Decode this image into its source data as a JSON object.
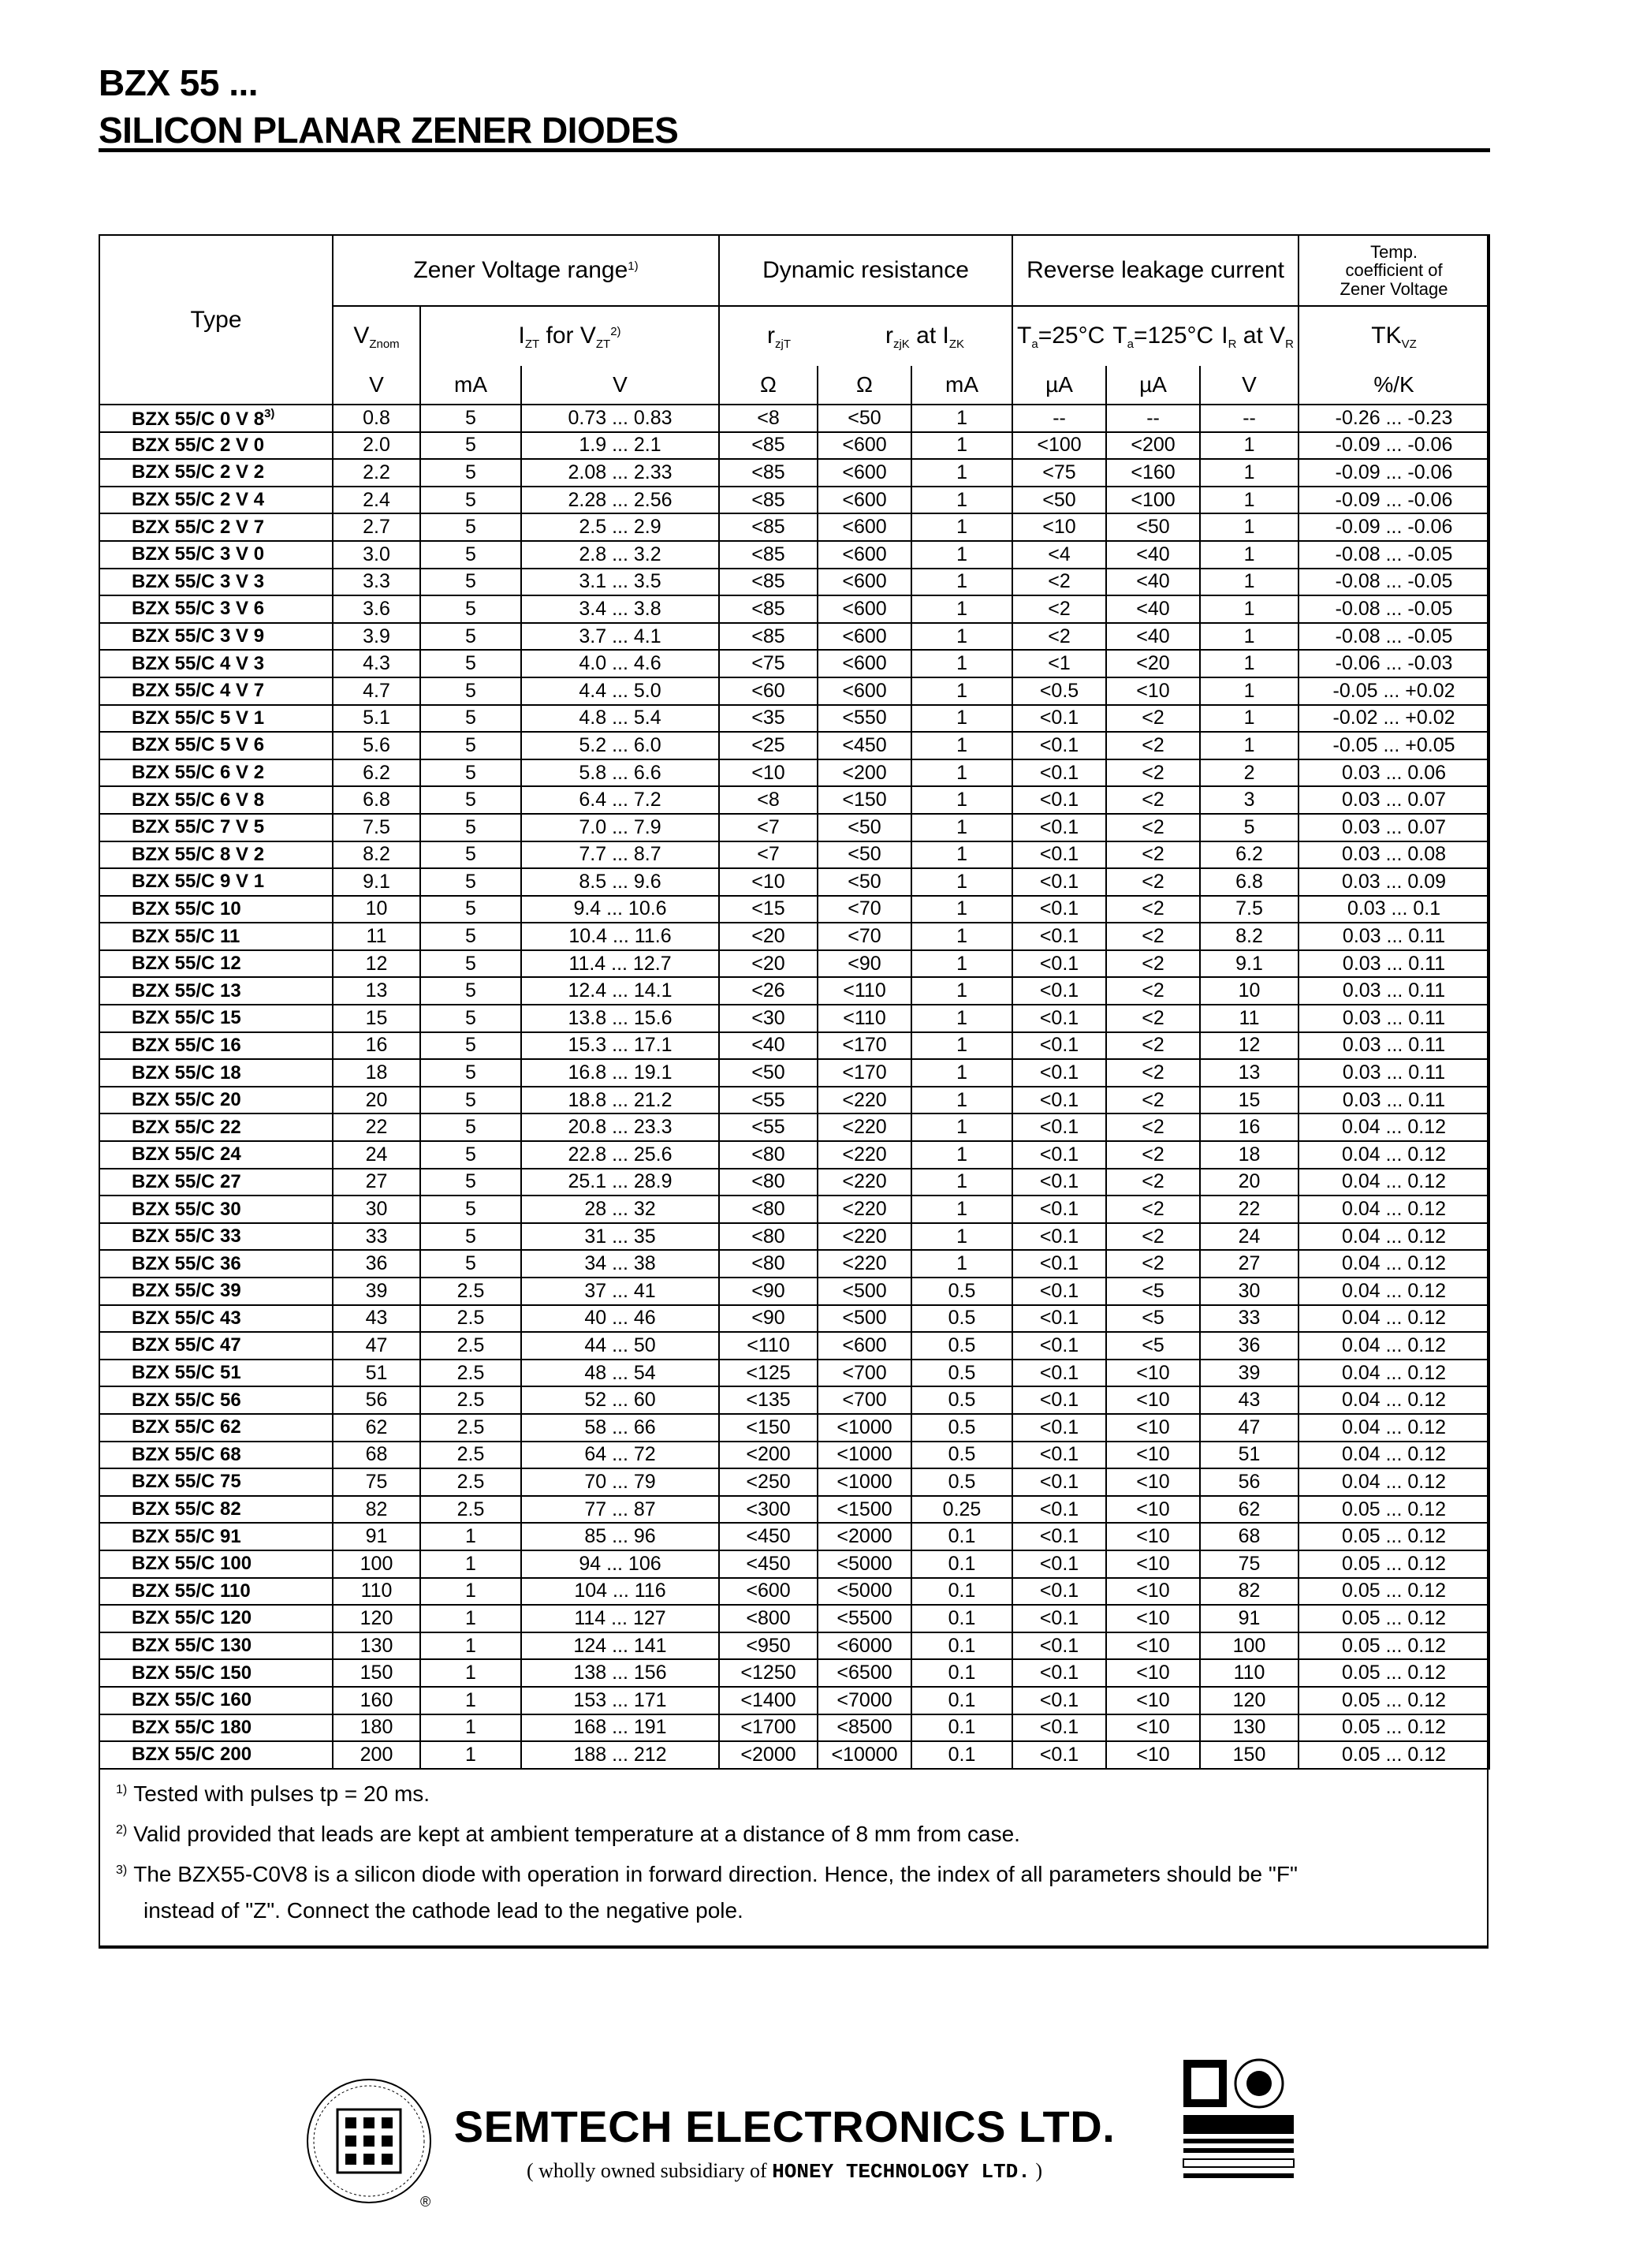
{
  "header": {
    "line1": "BZX 55 ...",
    "line2": "SILICON PLANAR ZENER DIODES"
  },
  "table": {
    "groups": {
      "type": "Type",
      "zener": "Zener Voltage range",
      "zener_note": "1)",
      "dynamic": "Dynamic resistance",
      "reverse": "Reverse leakage current",
      "temp": [
        "Temp.",
        "coefficient of",
        "Zener Voltage"
      ]
    },
    "params": {
      "vznom": {
        "main": "V",
        "sub": "Znom"
      },
      "izt": {
        "main": "I",
        "sub": "ZT",
        "mid": " for V",
        "sub2": "ZT",
        "note": "2)"
      },
      "rzjt": {
        "main": "r",
        "sub": "zjT"
      },
      "rzjk": {
        "main": "r",
        "sub": "zjK",
        "mid": " at I",
        "sub2": "ZK"
      },
      "ta25": {
        "main": "T",
        "sub": "a",
        "rest": "=25°C"
      },
      "ta125": {
        "main": "T",
        "sub": "a",
        "rest": "=125°C"
      },
      "irvr": {
        "main": "I",
        "sub": "R",
        "mid": " at V",
        "sub2": "R"
      },
      "tk": {
        "main": "TK",
        "sub": "VZ"
      }
    },
    "units": [
      "V",
      "mA",
      "V",
      "Ω",
      "Ω",
      "mA",
      "µA",
      "µA",
      "V",
      "%/K"
    ],
    "rows": [
      [
        "BZX 55/C 0 V 8",
        "0.8",
        "5",
        "0.73 ... 0.83",
        "<8",
        "<50",
        "1",
        "--",
        "--",
        "--",
        "-0.26 ... -0.23"
      ],
      [
        "BZX 55/C 2 V 0",
        "2.0",
        "5",
        "1.9 ... 2.1",
        "<85",
        "<600",
        "1",
        "<100",
        "<200",
        "1",
        "-0.09 ... -0.06"
      ],
      [
        "BZX 55/C 2 V 2",
        "2.2",
        "5",
        "2.08 ... 2.33",
        "<85",
        "<600",
        "1",
        "<75",
        "<160",
        "1",
        "-0.09 ... -0.06"
      ],
      [
        "BZX 55/C 2 V 4",
        "2.4",
        "5",
        "2.28 ... 2.56",
        "<85",
        "<600",
        "1",
        "<50",
        "<100",
        "1",
        "-0.09 ... -0.06"
      ],
      [
        "BZX 55/C 2 V 7",
        "2.7",
        "5",
        "2.5 ... 2.9",
        "<85",
        "<600",
        "1",
        "<10",
        "<50",
        "1",
        "-0.09 ... -0.06"
      ],
      [
        "BZX 55/C 3 V 0",
        "3.0",
        "5",
        "2.8 ... 3.2",
        "<85",
        "<600",
        "1",
        "<4",
        "<40",
        "1",
        "-0.08 ... -0.05"
      ],
      [
        "BZX 55/C 3 V 3",
        "3.3",
        "5",
        "3.1 ... 3.5",
        "<85",
        "<600",
        "1",
        "<2",
        "<40",
        "1",
        "-0.08 ... -0.05"
      ],
      [
        "BZX 55/C 3 V 6",
        "3.6",
        "5",
        "3.4 ... 3.8",
        "<85",
        "<600",
        "1",
        "<2",
        "<40",
        "1",
        "-0.08 ... -0.05"
      ],
      [
        "BZX 55/C 3 V 9",
        "3.9",
        "5",
        "3.7 ... 4.1",
        "<85",
        "<600",
        "1",
        "<2",
        "<40",
        "1",
        "-0.08 ... -0.05"
      ],
      [
        "BZX 55/C 4 V 3",
        "4.3",
        "5",
        "4.0 ... 4.6",
        "<75",
        "<600",
        "1",
        "<1",
        "<20",
        "1",
        "-0.06 ... -0.03"
      ],
      [
        "BZX 55/C 4 V 7",
        "4.7",
        "5",
        "4.4 ... 5.0",
        "<60",
        "<600",
        "1",
        "<0.5",
        "<10",
        "1",
        "-0.05 ... +0.02"
      ],
      [
        "BZX 55/C 5 V 1",
        "5.1",
        "5",
        "4.8 ... 5.4",
        "<35",
        "<550",
        "1",
        "<0.1",
        "<2",
        "1",
        "-0.02 ... +0.02"
      ],
      [
        "BZX 55/C 5 V 6",
        "5.6",
        "5",
        "5.2 ... 6.0",
        "<25",
        "<450",
        "1",
        "<0.1",
        "<2",
        "1",
        "-0.05 ... +0.05"
      ],
      [
        "BZX 55/C 6 V 2",
        "6.2",
        "5",
        "5.8 ... 6.6",
        "<10",
        "<200",
        "1",
        "<0.1",
        "<2",
        "2",
        "0.03 ... 0.06"
      ],
      [
        "BZX 55/C 6 V 8",
        "6.8",
        "5",
        "6.4 ... 7.2",
        "<8",
        "<150",
        "1",
        "<0.1",
        "<2",
        "3",
        "0.03 ... 0.07"
      ],
      [
        "BZX 55/C 7 V 5",
        "7.5",
        "5",
        "7.0 ... 7.9",
        "<7",
        "<50",
        "1",
        "<0.1",
        "<2",
        "5",
        "0.03 ... 0.07"
      ],
      [
        "BZX 55/C 8 V 2",
        "8.2",
        "5",
        "7.7 ... 8.7",
        "<7",
        "<50",
        "1",
        "<0.1",
        "<2",
        "6.2",
        "0.03 ... 0.08"
      ],
      [
        "BZX 55/C 9 V 1",
        "9.1",
        "5",
        "8.5 ... 9.6",
        "<10",
        "<50",
        "1",
        "<0.1",
        "<2",
        "6.8",
        "0.03 ... 0.09"
      ],
      [
        "BZX 55/C 10",
        "10",
        "5",
        "9.4 ... 10.6",
        "<15",
        "<70",
        "1",
        "<0.1",
        "<2",
        "7.5",
        "0.03 ... 0.1"
      ],
      [
        "BZX 55/C 11",
        "11",
        "5",
        "10.4 ... 11.6",
        "<20",
        "<70",
        "1",
        "<0.1",
        "<2",
        "8.2",
        "0.03 ... 0.11"
      ],
      [
        "BZX 55/C 12",
        "12",
        "5",
        "11.4 ... 12.7",
        "<20",
        "<90",
        "1",
        "<0.1",
        "<2",
        "9.1",
        "0.03 ... 0.11"
      ],
      [
        "BZX 55/C 13",
        "13",
        "5",
        "12.4 ... 14.1",
        "<26",
        "<110",
        "1",
        "<0.1",
        "<2",
        "10",
        "0.03 ... 0.11"
      ],
      [
        "BZX 55/C 15",
        "15",
        "5",
        "13.8 ... 15.6",
        "<30",
        "<110",
        "1",
        "<0.1",
        "<2",
        "11",
        "0.03 ... 0.11"
      ],
      [
        "BZX 55/C 16",
        "16",
        "5",
        "15.3 ... 17.1",
        "<40",
        "<170",
        "1",
        "<0.1",
        "<2",
        "12",
        "0.03 ... 0.11"
      ],
      [
        "BZX 55/C 18",
        "18",
        "5",
        "16.8 ... 19.1",
        "<50",
        "<170",
        "1",
        "<0.1",
        "<2",
        "13",
        "0.03 ... 0.11"
      ],
      [
        "BZX 55/C 20",
        "20",
        "5",
        "18.8 ... 21.2",
        "<55",
        "<220",
        "1",
        "<0.1",
        "<2",
        "15",
        "0.03 ... 0.11"
      ],
      [
        "BZX 55/C 22",
        "22",
        "5",
        "20.8 ... 23.3",
        "<55",
        "<220",
        "1",
        "<0.1",
        "<2",
        "16",
        "0.04 ... 0.12"
      ],
      [
        "BZX 55/C 24",
        "24",
        "5",
        "22.8 ... 25.6",
        "<80",
        "<220",
        "1",
        "<0.1",
        "<2",
        "18",
        "0.04 ... 0.12"
      ],
      [
        "BZX 55/C 27",
        "27",
        "5",
        "25.1 ... 28.9",
        "<80",
        "<220",
        "1",
        "<0.1",
        "<2",
        "20",
        "0.04 ... 0.12"
      ],
      [
        "BZX 55/C 30",
        "30",
        "5",
        "28 ... 32",
        "<80",
        "<220",
        "1",
        "<0.1",
        "<2",
        "22",
        "0.04 ... 0.12"
      ],
      [
        "BZX 55/C 33",
        "33",
        "5",
        "31 ... 35",
        "<80",
        "<220",
        "1",
        "<0.1",
        "<2",
        "24",
        "0.04 ... 0.12"
      ],
      [
        "BZX 55/C 36",
        "36",
        "5",
        "34 ... 38",
        "<80",
        "<220",
        "1",
        "<0.1",
        "<2",
        "27",
        "0.04 ... 0.12"
      ],
      [
        "BZX 55/C 39",
        "39",
        "2.5",
        "37 ... 41",
        "<90",
        "<500",
        "0.5",
        "<0.1",
        "<5",
        "30",
        "0.04 ... 0.12"
      ],
      [
        "BZX 55/C 43",
        "43",
        "2.5",
        "40 ... 46",
        "<90",
        "<500",
        "0.5",
        "<0.1",
        "<5",
        "33",
        "0.04 ... 0.12"
      ],
      [
        "BZX 55/C 47",
        "47",
        "2.5",
        "44 ... 50",
        "<110",
        "<600",
        "0.5",
        "<0.1",
        "<5",
        "36",
        "0.04 ... 0.12"
      ],
      [
        "BZX 55/C 51",
        "51",
        "2.5",
        "48 ... 54",
        "<125",
        "<700",
        "0.5",
        "<0.1",
        "<10",
        "39",
        "0.04 ... 0.12"
      ],
      [
        "BZX 55/C 56",
        "56",
        "2.5",
        "52 ... 60",
        "<135",
        "<700",
        "0.5",
        "<0.1",
        "<10",
        "43",
        "0.04 ... 0.12"
      ],
      [
        "BZX 55/C 62",
        "62",
        "2.5",
        "58 ... 66",
        "<150",
        "<1000",
        "0.5",
        "<0.1",
        "<10",
        "47",
        "0.04 ... 0.12"
      ],
      [
        "BZX 55/C 68",
        "68",
        "2.5",
        "64 ... 72",
        "<200",
        "<1000",
        "0.5",
        "<0.1",
        "<10",
        "51",
        "0.04 ... 0.12"
      ],
      [
        "BZX 55/C 75",
        "75",
        "2.5",
        "70 ... 79",
        "<250",
        "<1000",
        "0.5",
        "<0.1",
        "<10",
        "56",
        "0.04 ... 0.12"
      ],
      [
        "BZX 55/C 82",
        "82",
        "2.5",
        "77 ... 87",
        "<300",
        "<1500",
        "0.25",
        "<0.1",
        "<10",
        "62",
        "0.05 ... 0.12"
      ],
      [
        "BZX 55/C 91",
        "91",
        "1",
        "85 ... 96",
        "<450",
        "<2000",
        "0.1",
        "<0.1",
        "<10",
        "68",
        "0.05 ... 0.12"
      ],
      [
        "BZX 55/C 100",
        "100",
        "1",
        "94 ... 106",
        "<450",
        "<5000",
        "0.1",
        "<0.1",
        "<10",
        "75",
        "0.05 ... 0.12"
      ],
      [
        "BZX 55/C 110",
        "110",
        "1",
        "104 ... 116",
        "<600",
        "<5000",
        "0.1",
        "<0.1",
        "<10",
        "82",
        "0.05 ... 0.12"
      ],
      [
        "BZX 55/C 120",
        "120",
        "1",
        "114 ... 127",
        "<800",
        "<5500",
        "0.1",
        "<0.1",
        "<10",
        "91",
        "0.05 ... 0.12"
      ],
      [
        "BZX 55/C 130",
        "130",
        "1",
        "124 ... 141",
        "<950",
        "<6000",
        "0.1",
        "<0.1",
        "<10",
        "100",
        "0.05 ... 0.12"
      ],
      [
        "BZX 55/C 150",
        "150",
        "1",
        "138 ... 156",
        "<1250",
        "<6500",
        "0.1",
        "<0.1",
        "<10",
        "110",
        "0.05 ... 0.12"
      ],
      [
        "BZX 55/C 160",
        "160",
        "1",
        "153 ... 171",
        "<1400",
        "<7000",
        "0.1",
        "<0.1",
        "<10",
        "120",
        "0.05 ... 0.12"
      ],
      [
        "BZX 55/C 180",
        "180",
        "1",
        "168 ... 191",
        "<1700",
        "<8500",
        "0.1",
        "<0.1",
        "<10",
        "130",
        "0.05 ... 0.12"
      ],
      [
        "BZX 55/C 200",
        "200",
        "1",
        "188 ... 212",
        "<2000",
        "<10000",
        "0.1",
        "<0.1",
        "<10",
        "150",
        "0.05 ... 0.12"
      ]
    ],
    "first_row_note": "3)"
  },
  "footnotes": [
    {
      "mark": "1)",
      "text": "Tested with pulses tp = 20 ms."
    },
    {
      "mark": "2)",
      "text": "Valid provided that leads are kept at ambient temperature at a distance of 8 mm from case."
    },
    {
      "mark": "3)",
      "text": "The BZX55-C0V8 is a silicon diode with operation in forward direction.  Hence, the index of all parameters should be \"F\"",
      "cont": "instead of \"Z\".  Connect the cathode lead to the negative pole."
    }
  ],
  "footer": {
    "company": "SEMTECH ELECTRONICS LTD.",
    "sub_open": "( wholly owned subsidiary of ",
    "parent": "HONEY TECHNOLOGY LTD.",
    "sub_close": " )",
    "registered_mark": "®"
  }
}
